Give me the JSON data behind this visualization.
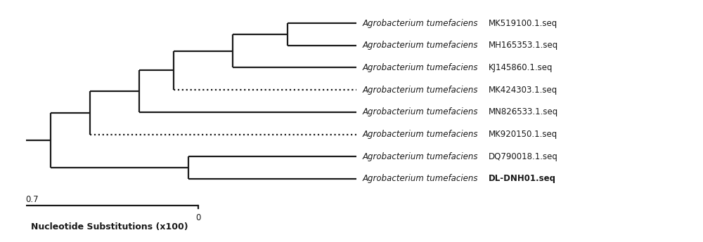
{
  "taxa": [
    {
      "label": "Agrobacterium tumefaciens",
      "accession": "MK519100.1.seq",
      "bold": false,
      "y": 8
    },
    {
      "label": "Agrobacterium tumefaciens",
      "accession": "MH165353.1.seq",
      "bold": false,
      "y": 7
    },
    {
      "label": "Agrobacterium tumefaciens",
      "accession": "KJ145860.1.seq",
      "bold": false,
      "y": 6
    },
    {
      "label": "Agrobacterium tumefaciens",
      "accession": "MK424303.1.seq",
      "bold": false,
      "y": 5,
      "dashed": true
    },
    {
      "label": "Agrobacterium tumefaciens",
      "accession": "MN826533.1.seq",
      "bold": false,
      "y": 4
    },
    {
      "label": "Agrobacterium tumefaciens",
      "accession": "MK920150.1.seq",
      "bold": false,
      "y": 3,
      "dashed": true
    },
    {
      "label": "Agrobacterium tumefaciens",
      "accession": "DQ790018.1.seq",
      "bold": false,
      "y": 2
    },
    {
      "label": "Agrobacterium tumefaciens",
      "accession": "DL-DNH01.seq",
      "bold": true,
      "y": 1
    }
  ],
  "tree_color": "#1a1a1a",
  "xlabel": "Nucleotide Substitutions (x100)",
  "background_color": "#ffffff",
  "fig_width": 10.0,
  "fig_height": 3.45,
  "dpi": 100,
  "lw": 1.6
}
